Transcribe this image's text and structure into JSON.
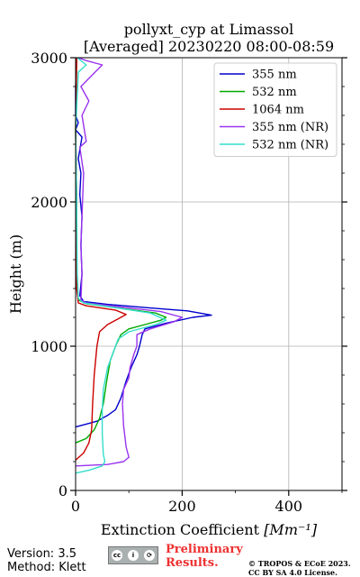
{
  "chart_data": {
    "type": "line",
    "title_line1": "pollyxt_cyp at Limassol",
    "title_line2": "[Averaged] 20230220 08:00-08:59",
    "xlabel": "Extinction Coefficient",
    "xlabel_unit": "[Mm⁻¹]",
    "ylabel": "Height (m)",
    "xlim": [
      0,
      500
    ],
    "ylim": [
      0,
      3000
    ],
    "xticks": [
      "0",
      "200",
      "400"
    ],
    "xtick_values": [
      0,
      200,
      400
    ],
    "yticks": [
      "0",
      "1000",
      "2000",
      "3000"
    ],
    "ytick_values": [
      0,
      1000,
      2000,
      3000
    ],
    "grid": true,
    "legend_position": "top-right",
    "series": [
      {
        "name": "355 nm",
        "color": "#0000cc",
        "points": [
          [
            0,
            440
          ],
          [
            20,
            460
          ],
          [
            40,
            480
          ],
          [
            60,
            520
          ],
          [
            75,
            560
          ],
          [
            85,
            640
          ],
          [
            95,
            760
          ],
          [
            105,
            860
          ],
          [
            115,
            940
          ],
          [
            120,
            1000
          ],
          [
            125,
            1080
          ],
          [
            130,
            1120
          ],
          [
            170,
            1160
          ],
          [
            220,
            1200
          ],
          [
            255,
            1215
          ],
          [
            210,
            1245
          ],
          [
            140,
            1265
          ],
          [
            60,
            1290
          ],
          [
            15,
            1310
          ],
          [
            8,
            1350
          ],
          [
            12,
            1500
          ],
          [
            10,
            1700
          ],
          [
            12,
            1900
          ],
          [
            8,
            2050
          ],
          [
            10,
            2200
          ],
          [
            5,
            2300
          ],
          [
            12,
            2450
          ],
          [
            0,
            2500
          ],
          [
            5,
            2550
          ],
          [
            0,
            2600
          ],
          [
            0,
            2800
          ],
          [
            2,
            3000
          ]
        ]
      },
      {
        "name": "532 nm",
        "color": "#00aa00",
        "points": [
          [
            0,
            330
          ],
          [
            20,
            360
          ],
          [
            35,
            420
          ],
          [
            45,
            500
          ],
          [
            52,
            600
          ],
          [
            58,
            750
          ],
          [
            65,
            900
          ],
          [
            75,
            1000
          ],
          [
            85,
            1080
          ],
          [
            100,
            1120
          ],
          [
            130,
            1150
          ],
          [
            160,
            1180
          ],
          [
            170,
            1200
          ],
          [
            150,
            1230
          ],
          [
            80,
            1265
          ],
          [
            20,
            1295
          ],
          [
            5,
            1320
          ],
          [
            2,
            1500
          ],
          [
            2,
            2000
          ],
          [
            0,
            2500
          ],
          [
            2,
            3000
          ]
        ]
      },
      {
        "name": "1064 nm",
        "color": "#cc0000",
        "points": [
          [
            0,
            210
          ],
          [
            15,
            260
          ],
          [
            25,
            330
          ],
          [
            30,
            420
          ],
          [
            32,
            600
          ],
          [
            35,
            800
          ],
          [
            40,
            1000
          ],
          [
            45,
            1100
          ],
          [
            60,
            1150
          ],
          [
            80,
            1190
          ],
          [
            95,
            1220
          ],
          [
            75,
            1250
          ],
          [
            20,
            1280
          ],
          [
            5,
            1300
          ],
          [
            2,
            1400
          ],
          [
            2,
            2000
          ],
          [
            0,
            2500
          ],
          [
            2,
            3000
          ]
        ]
      },
      {
        "name": "355 nm (NR)",
        "color": "#9933ee",
        "points": [
          [
            0,
            170
          ],
          [
            60,
            180
          ],
          [
            90,
            200
          ],
          [
            100,
            230
          ],
          [
            95,
            300
          ],
          [
            90,
            450
          ],
          [
            88,
            600
          ],
          [
            90,
            700
          ],
          [
            100,
            780
          ],
          [
            102,
            850
          ],
          [
            110,
            950
          ],
          [
            115,
            1000
          ],
          [
            115,
            1080
          ],
          [
            140,
            1120
          ],
          [
            185,
            1170
          ],
          [
            200,
            1200
          ],
          [
            160,
            1240
          ],
          [
            90,
            1270
          ],
          [
            20,
            1300
          ],
          [
            10,
            1320
          ],
          [
            12,
            1500
          ],
          [
            10,
            1700
          ],
          [
            12,
            1900
          ],
          [
            15,
            2200
          ],
          [
            8,
            2380
          ],
          [
            20,
            2420
          ],
          [
            12,
            2600
          ],
          [
            25,
            2700
          ],
          [
            10,
            2800
          ],
          [
            50,
            2950
          ],
          [
            20,
            2980
          ],
          [
            5,
            3000
          ]
        ]
      },
      {
        "name": "532 nm (NR)",
        "color": "#33ddcc",
        "points": [
          [
            0,
            120
          ],
          [
            25,
            140
          ],
          [
            50,
            170
          ],
          [
            55,
            200
          ],
          [
            52,
            250
          ],
          [
            50,
            400
          ],
          [
            50,
            550
          ],
          [
            52,
            700
          ],
          [
            60,
            850
          ],
          [
            70,
            950
          ],
          [
            80,
            1050
          ],
          [
            100,
            1100
          ],
          [
            150,
            1150
          ],
          [
            170,
            1180
          ],
          [
            140,
            1230
          ],
          [
            70,
            1270
          ],
          [
            15,
            1300
          ],
          [
            5,
            1330
          ],
          [
            3,
            1500
          ],
          [
            2,
            2000
          ],
          [
            0,
            2500
          ],
          [
            5,
            2900
          ],
          [
            20,
            2950
          ],
          [
            3,
            3000
          ]
        ]
      }
    ]
  },
  "footer": {
    "version": "Version: 3.5",
    "method": "Method: Klett",
    "license_badge": "cc by sa",
    "preliminary_line1": "Preliminary",
    "preliminary_line2": "Results.",
    "copyright_line1": "© TROPOS & ECoE 2023.",
    "copyright_line2": "CC BY SA 4.0 License."
  }
}
